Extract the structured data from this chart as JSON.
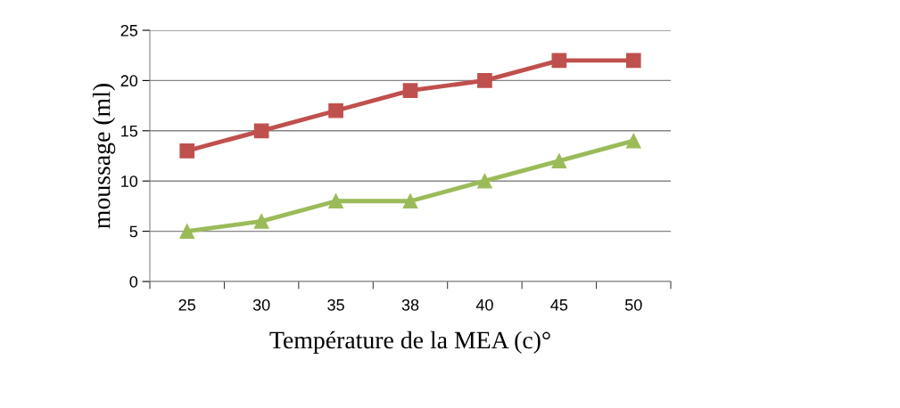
{
  "chart_data": {
    "type": "line",
    "xlabel": "Température de la MEA (c)°",
    "ylabel": "moussage (ml)",
    "categories": [
      "25",
      "30",
      "35",
      "38",
      "40",
      "45",
      "50"
    ],
    "series": [
      {
        "color": "#c0504d",
        "marker": "square",
        "values": [
          13,
          15,
          17,
          19,
          20,
          22,
          22
        ]
      },
      {
        "color": "#9bbb59",
        "marker": "triangle",
        "values": [
          5,
          6,
          8,
          8,
          10,
          12,
          14
        ]
      }
    ],
    "ylim": [
      0,
      25
    ],
    "yticks": [
      0,
      5,
      10,
      15,
      20,
      25
    ],
    "grid": "y",
    "line_style": "solid"
  }
}
